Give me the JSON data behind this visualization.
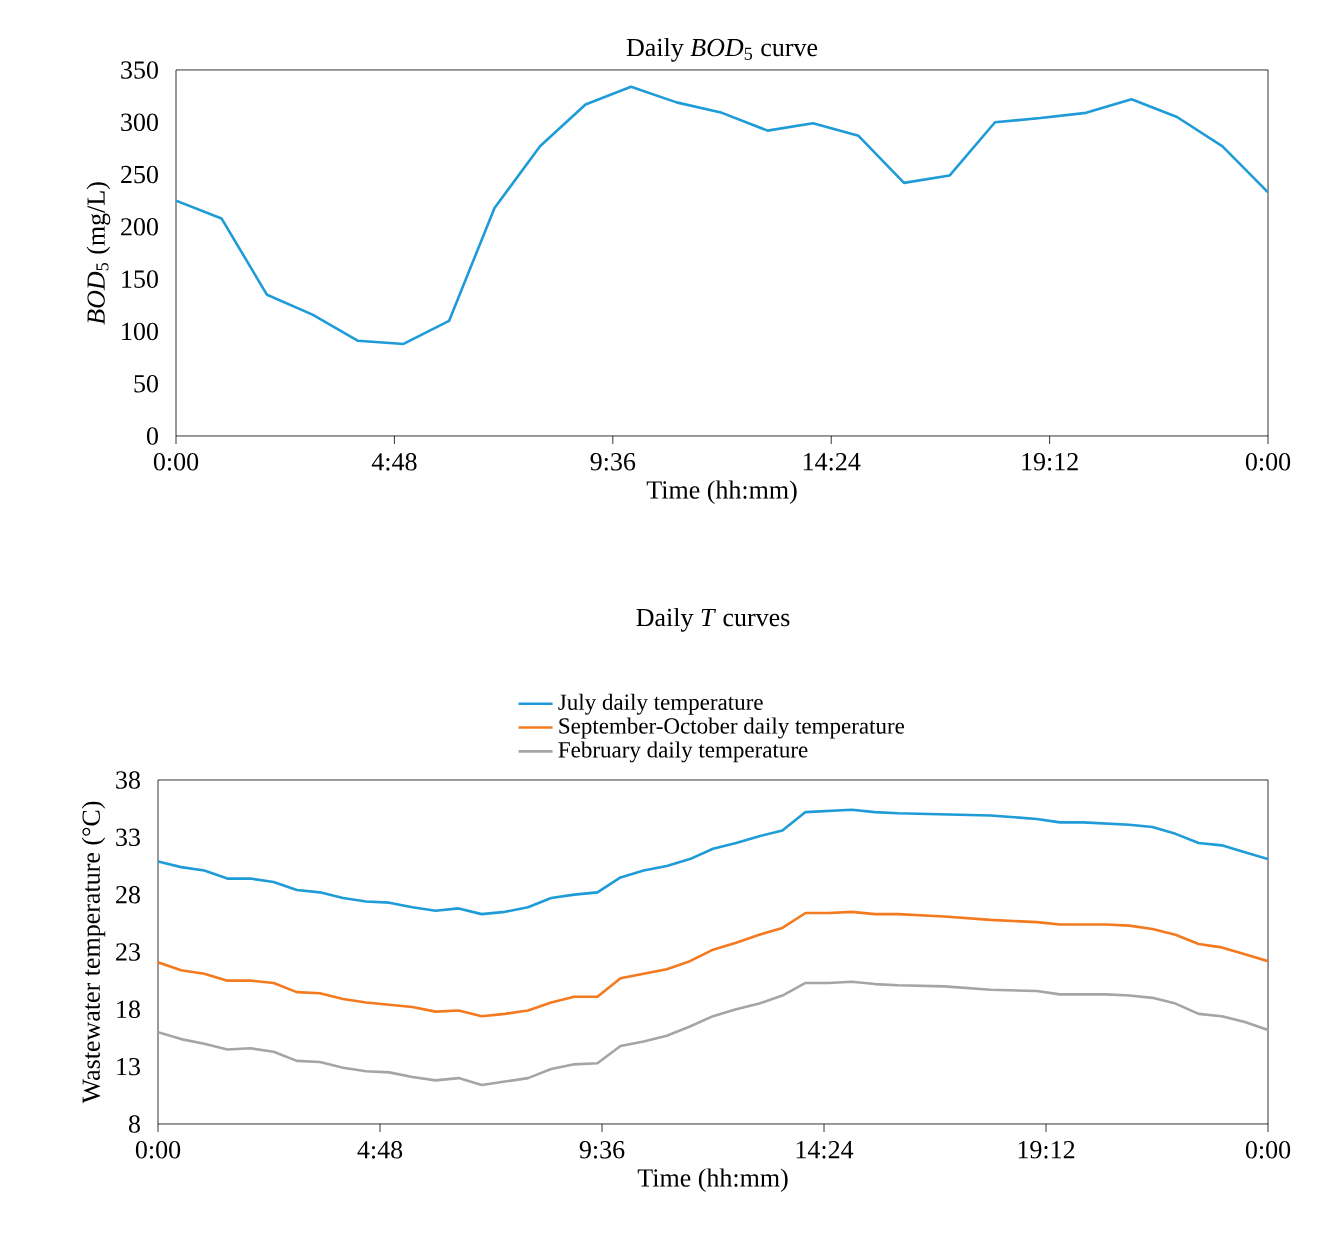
{
  "chart_data": [
    {
      "type": "line",
      "title": "Daily *BOD*$_{5}$ curve",
      "xlabel": "Time (hh:mm)",
      "ylabel": "*BOD*$_{5}$ (mg/L)",
      "x": [
        0,
        1,
        2,
        3,
        4,
        5,
        6,
        7,
        8,
        9,
        10,
        11,
        12,
        13,
        14,
        15,
        16,
        17,
        18,
        19,
        20,
        21,
        22,
        23,
        24
      ],
      "xlim": [
        0,
        24
      ],
      "xticks": [
        {
          "value": 0,
          "label": "0:00"
        },
        {
          "value": 4.8,
          "label": "4:48"
        },
        {
          "value": 9.6,
          "label": "9:36"
        },
        {
          "value": 14.4,
          "label": "14:24"
        },
        {
          "value": 19.2,
          "label": "19:12"
        },
        {
          "value": 24,
          "label": "0:00"
        }
      ],
      "ylim": [
        0,
        350
      ],
      "yticks": [
        0,
        50,
        100,
        150,
        200,
        250,
        300,
        350
      ],
      "series": [
        {
          "color": "#1f9bd7",
          "values": [
            225,
            208,
            135,
            116,
            91,
            88,
            110,
            218,
            277,
            317,
            334,
            319,
            309,
            292,
            299,
            287,
            242,
            249,
            300,
            304,
            309,
            322,
            305,
            277,
            233
          ]
        }
      ]
    },
    {
      "type": "line",
      "title": "Daily *T* curves",
      "xlabel": "Time (hh:mm)",
      "ylabel": "Wastewater temperature (°C)",
      "x": [
        0,
        0.5,
        1,
        1.5,
        2,
        2.5,
        3,
        3.5,
        4,
        4.5,
        5,
        5.5,
        6,
        6.5,
        7,
        7.5,
        8,
        8.5,
        9,
        9.5,
        10,
        10.5,
        11,
        11.5,
        12,
        12.5,
        13,
        13.5,
        14,
        14.5,
        15,
        15.5,
        16,
        17,
        18,
        19,
        19.5,
        20,
        20.5,
        21,
        21.5,
        22,
        22.5,
        23,
        23.5,
        24
      ],
      "xlim": [
        0,
        24
      ],
      "xticks": [
        {
          "value": 0,
          "label": "0:00"
        },
        {
          "value": 4.8,
          "label": "4:48"
        },
        {
          "value": 9.6,
          "label": "9:36"
        },
        {
          "value": 14.4,
          "label": "14:24"
        },
        {
          "value": 19.2,
          "label": "19:12"
        },
        {
          "value": 24,
          "label": "0:00"
        }
      ],
      "ylim": [
        8,
        38
      ],
      "yticks": [
        8,
        13,
        18,
        23,
        28,
        33,
        38
      ],
      "legend": "top",
      "series": [
        {
          "name": "July daily temperature",
          "color": "#1f9bd7",
          "values": [
            30.9,
            30.4,
            30.1,
            29.4,
            29.4,
            29.1,
            28.4,
            28.2,
            27.7,
            27.4,
            27.3,
            26.9,
            26.6,
            26.8,
            26.3,
            26.5,
            26.9,
            27.7,
            28.0,
            28.2,
            29.5,
            30.1,
            30.5,
            31.1,
            32.0,
            32.5,
            33.1,
            33.6,
            35.2,
            35.3,
            35.4,
            35.2,
            35.1,
            35.0,
            34.9,
            34.6,
            34.3,
            34.3,
            34.2,
            34.1,
            33.9,
            33.3,
            32.5,
            32.3,
            31.7,
            31.1
          ]
        },
        {
          "name": "September-October daily temperature",
          "color": "#f47a20",
          "values": [
            22.1,
            21.4,
            21.1,
            20.5,
            20.5,
            20.3,
            19.5,
            19.4,
            18.9,
            18.6,
            18.4,
            18.2,
            17.8,
            17.9,
            17.4,
            17.6,
            17.9,
            18.6,
            19.1,
            19.1,
            20.7,
            21.1,
            21.5,
            22.2,
            23.2,
            23.8,
            24.5,
            25.1,
            26.4,
            26.4,
            26.5,
            26.3,
            26.3,
            26.1,
            25.8,
            25.6,
            25.4,
            25.4,
            25.4,
            25.3,
            25.0,
            24.5,
            23.7,
            23.4,
            22.8,
            22.2
          ]
        },
        {
          "name": "February daily temperature",
          "color": "#a5a5a5",
          "values": [
            16.0,
            15.4,
            15.0,
            14.5,
            14.6,
            14.3,
            13.5,
            13.4,
            12.9,
            12.6,
            12.5,
            12.1,
            11.8,
            12.0,
            11.4,
            11.7,
            12.0,
            12.8,
            13.2,
            13.3,
            14.8,
            15.2,
            15.7,
            16.5,
            17.4,
            18.0,
            18.5,
            19.2,
            20.3,
            20.3,
            20.4,
            20.2,
            20.1,
            20.0,
            19.7,
            19.6,
            19.3,
            19.3,
            19.3,
            19.2,
            19.0,
            18.5,
            17.6,
            17.4,
            16.9,
            16.2
          ]
        }
      ]
    }
  ]
}
